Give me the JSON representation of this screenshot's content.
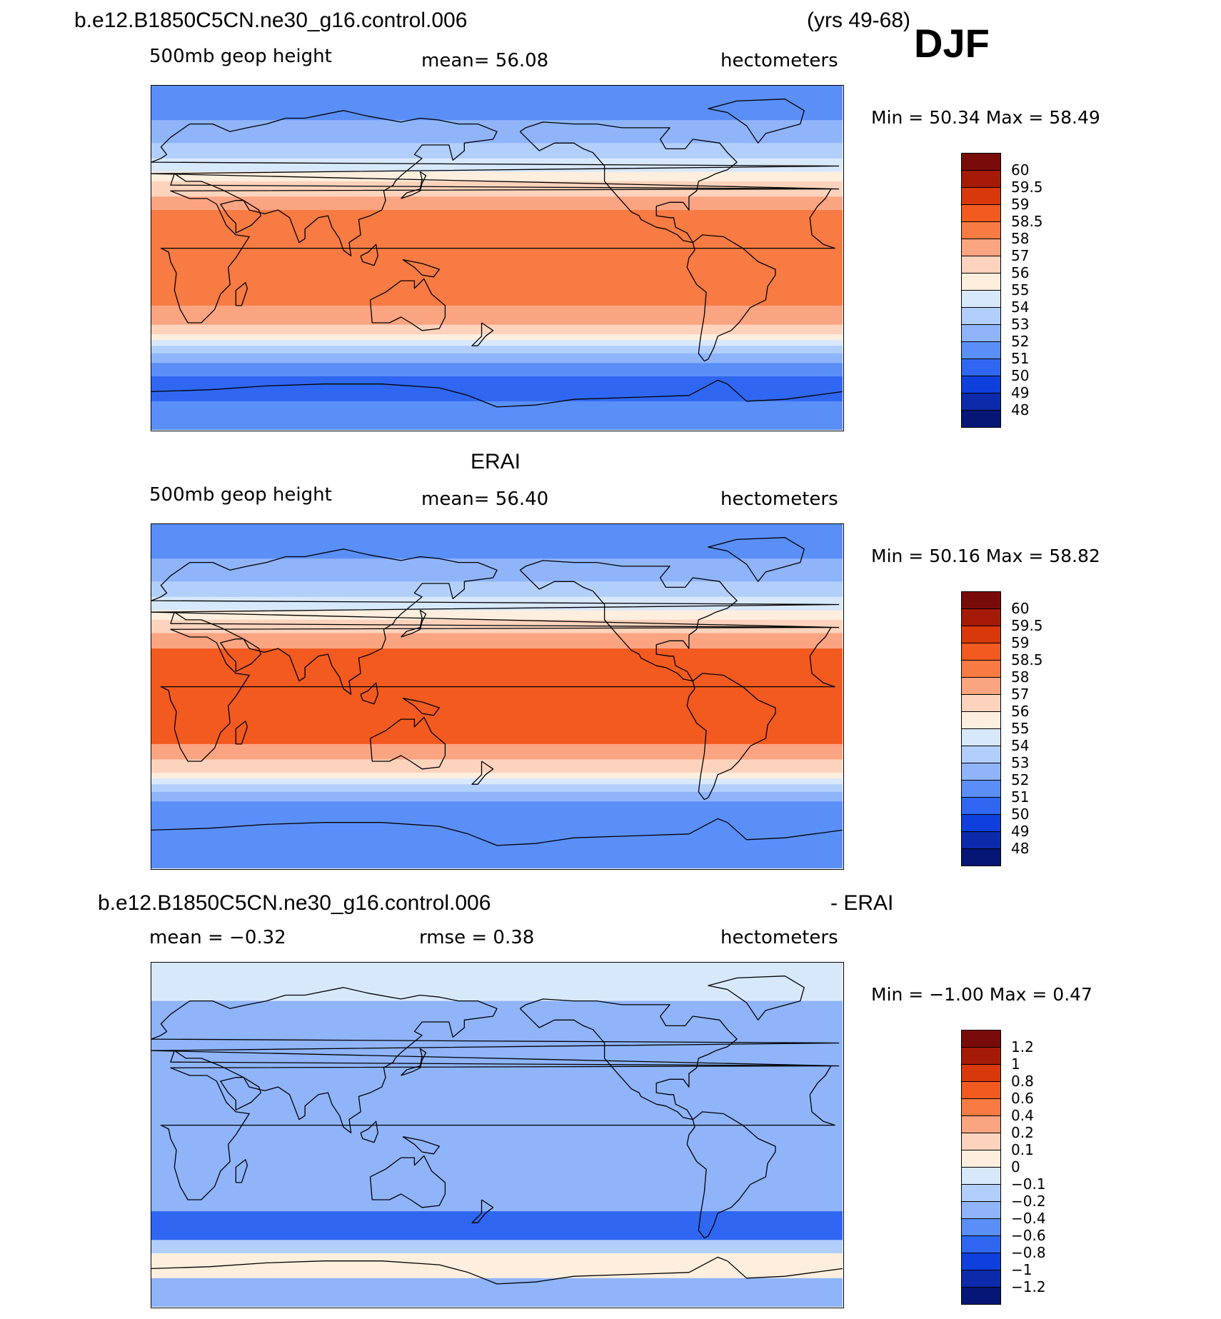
{
  "header": {
    "case_title": "b.e12.B1850C5CN.ne30_g16.control.006",
    "years": "(yrs 49-68)",
    "season": "DJF"
  },
  "panels": [
    {
      "id": "model",
      "section_title": "",
      "left_label": "500mb geop height",
      "center_label": "mean=  56.08",
      "right_label": "hectometers",
      "minmax": "Min =   50.34 Max =   58.49",
      "colorbar_key": "height",
      "summary": {
        "min": 50.34,
        "max": 58.49,
        "mean": 56.08
      }
    },
    {
      "id": "obs",
      "section_title": "ERAI",
      "left_label": "500mb geop height",
      "center_label": "mean=  56.40",
      "right_label": "hectometers",
      "minmax": "Min =   50.16 Max =   58.82",
      "colorbar_key": "height",
      "summary": {
        "min": 50.16,
        "max": 58.82,
        "mean": 56.4
      }
    },
    {
      "id": "diff",
      "section_title_left": "b.e12.B1850C5CN.ne30_g16.control.006",
      "section_title_right": "- ERAI",
      "left_label": "mean =  −0.32",
      "center_label": "rmse =    0.38",
      "right_label": "hectometers",
      "minmax": "Min =  −1.00 Max =    0.47",
      "colorbar_key": "diff",
      "summary": {
        "min": -1.0,
        "max": 0.47,
        "mean": -0.32,
        "rmse": 0.38
      }
    }
  ],
  "colorbars": {
    "height": {
      "labels": [
        "60",
        "59.5",
        "59",
        "58.5",
        "58",
        "57",
        "56",
        "55",
        "54",
        "53",
        "52",
        "51",
        "50",
        "49",
        "48"
      ],
      "colors": [
        "#7a0b0b",
        "#a61a08",
        "#d9380a",
        "#f25a20",
        "#f77b42",
        "#fba482",
        "#fdd3bd",
        "#fdeede",
        "#d8e8fb",
        "#b2cffb",
        "#8fb4fa",
        "#5a8ff8",
        "#2f67f2",
        "#0f40dd",
        "#0c2aa9",
        "#061676"
      ]
    },
    "diff": {
      "labels": [
        "1.2",
        "1",
        "0.8",
        "0.6",
        "0.4",
        "0.2",
        "0.1",
        "0",
        "−0.1",
        "−0.2",
        "−0.4",
        "−0.6",
        "−0.8",
        "−1",
        "−1.2"
      ],
      "colors": [
        "#7a0b0b",
        "#a61a08",
        "#d9380a",
        "#f25a20",
        "#f77b42",
        "#fba482",
        "#fdd3bd",
        "#fdeede",
        "#d8e8fb",
        "#b2cffb",
        "#8fb4fa",
        "#5a8ff8",
        "#2f67f2",
        "#0f40dd",
        "#0c2aa9",
        "#061676"
      ]
    }
  },
  "map_fields": {
    "model": {
      "bands_lat_desc": [
        {
          "lat_top": 90,
          "lat_bottom": 72,
          "value": 51.5
        },
        {
          "lat_top": 72,
          "lat_bottom": 60,
          "value": 52.5
        },
        {
          "lat_top": 60,
          "lat_bottom": 52,
          "value": 53.5
        },
        {
          "lat_top": 52,
          "lat_bottom": 45,
          "value": 54.5
        },
        {
          "lat_top": 45,
          "lat_bottom": 40,
          "value": 55.5
        },
        {
          "lat_top": 40,
          "lat_bottom": 32,
          "value": 56.5
        },
        {
          "lat_top": 32,
          "lat_bottom": 25,
          "value": 57.5
        },
        {
          "lat_top": 25,
          "lat_bottom": -25,
          "value": 58.2
        },
        {
          "lat_top": -25,
          "lat_bottom": -35,
          "value": 57.5
        },
        {
          "lat_top": -35,
          "lat_bottom": -40,
          "value": 56.5
        },
        {
          "lat_top": -40,
          "lat_bottom": -43,
          "value": 55.5
        },
        {
          "lat_top": -43,
          "lat_bottom": -46,
          "value": 54.5
        },
        {
          "lat_top": -46,
          "lat_bottom": -50,
          "value": 53.5
        },
        {
          "lat_top": -50,
          "lat_bottom": -55,
          "value": 52.5
        },
        {
          "lat_top": -55,
          "lat_bottom": -62,
          "value": 51.5
        },
        {
          "lat_top": -62,
          "lat_bottom": -75,
          "value": 50.5
        },
        {
          "lat_top": -75,
          "lat_bottom": -90,
          "value": 51.5
        }
      ]
    },
    "obs": {
      "bands_lat_desc": [
        {
          "lat_top": 90,
          "lat_bottom": 72,
          "value": 51.5
        },
        {
          "lat_top": 72,
          "lat_bottom": 60,
          "value": 52.5
        },
        {
          "lat_top": 60,
          "lat_bottom": 52,
          "value": 53.5
        },
        {
          "lat_top": 52,
          "lat_bottom": 45,
          "value": 54.5
        },
        {
          "lat_top": 45,
          "lat_bottom": 40,
          "value": 55.5
        },
        {
          "lat_top": 40,
          "lat_bottom": 33,
          "value": 56.5
        },
        {
          "lat_top": 33,
          "lat_bottom": 25,
          "value": 57.5
        },
        {
          "lat_top": 25,
          "lat_bottom": -25,
          "value": 58.7
        },
        {
          "lat_top": -25,
          "lat_bottom": -33,
          "value": 57.5
        },
        {
          "lat_top": -33,
          "lat_bottom": -40,
          "value": 56.5
        },
        {
          "lat_top": -40,
          "lat_bottom": -43,
          "value": 55.5
        },
        {
          "lat_top": -43,
          "lat_bottom": -46,
          "value": 54.5
        },
        {
          "lat_top": -46,
          "lat_bottom": -50,
          "value": 53.5
        },
        {
          "lat_top": -50,
          "lat_bottom": -55,
          "value": 52.5
        },
        {
          "lat_top": -55,
          "lat_bottom": -65,
          "value": 51.5
        },
        {
          "lat_top": -65,
          "lat_bottom": -90,
          "value": 51.5
        }
      ]
    },
    "diff": {
      "bands_lat_desc": [
        {
          "lat_top": 90,
          "lat_bottom": 70,
          "value": -0.05
        },
        {
          "lat_top": 70,
          "lat_bottom": 50,
          "value": -0.3
        },
        {
          "lat_top": 50,
          "lat_bottom": -40,
          "value": -0.3
        },
        {
          "lat_top": -40,
          "lat_bottom": -55,
          "value": -0.7
        },
        {
          "lat_top": -55,
          "lat_bottom": -62,
          "value": -0.15
        },
        {
          "lat_top": -62,
          "lat_bottom": -75,
          "value": 0.05
        },
        {
          "lat_top": -75,
          "lat_bottom": -90,
          "value": -0.3
        }
      ]
    }
  }
}
